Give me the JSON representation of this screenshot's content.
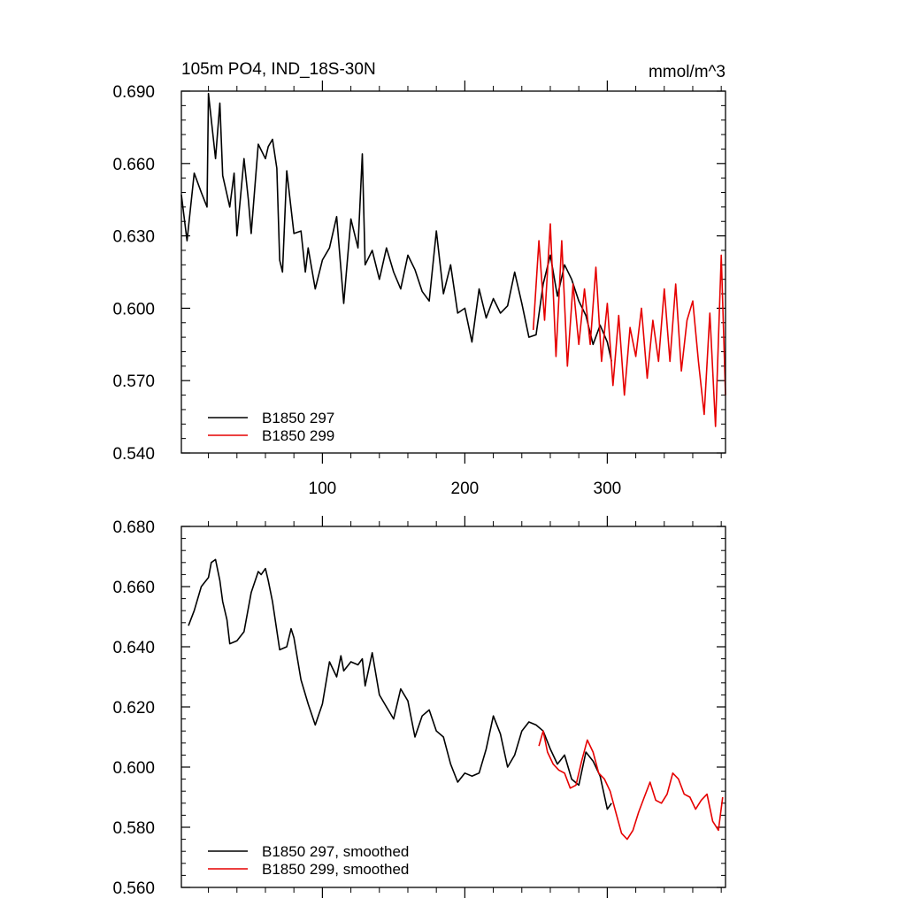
{
  "chart_data": [
    {
      "type": "line",
      "title": "105m PO4, IND_18S-30N",
      "units": "mmol/m^3",
      "xlim": [
        1,
        383
      ],
      "ylim": [
        0.54,
        0.69
      ],
      "x_ticks": [
        100,
        200,
        300
      ],
      "x_tick_labels": [
        "100",
        "200",
        "300"
      ],
      "y_ticks": [
        0.54,
        0.57,
        0.6,
        0.63,
        0.66,
        0.69
      ],
      "y_tick_labels": [
        "0.540",
        "0.570",
        "0.600",
        "0.630",
        "0.660",
        "0.690"
      ],
      "legend": [
        "B1850 297",
        "B1850 299"
      ],
      "legend_position": "bottom-left",
      "series": [
        {
          "name": "B1850 297",
          "color": "#000000",
          "x": [
            1,
            5,
            10,
            15,
            19,
            20,
            25,
            28,
            30,
            35,
            38,
            40,
            45,
            48,
            50,
            55,
            60,
            62,
            65,
            68,
            70,
            72,
            75,
            80,
            85,
            88,
            90,
            95,
            100,
            105,
            110,
            115,
            120,
            125,
            128,
            130,
            135,
            140,
            145,
            150,
            155,
            160,
            165,
            170,
            175,
            180,
            185,
            190,
            195,
            200,
            205,
            210,
            215,
            220,
            225,
            230,
            235,
            240,
            245,
            250,
            255,
            260,
            265,
            270,
            275,
            280,
            285,
            290,
            295,
            300,
            303
          ],
          "values": [
            0.647,
            0.628,
            0.656,
            0.648,
            0.642,
            0.689,
            0.662,
            0.685,
            0.655,
            0.642,
            0.656,
            0.63,
            0.662,
            0.645,
            0.631,
            0.668,
            0.662,
            0.667,
            0.67,
            0.658,
            0.62,
            0.615,
            0.657,
            0.631,
            0.632,
            0.615,
            0.625,
            0.608,
            0.62,
            0.625,
            0.638,
            0.602,
            0.637,
            0.625,
            0.664,
            0.618,
            0.624,
            0.612,
            0.625,
            0.615,
            0.608,
            0.622,
            0.616,
            0.607,
            0.603,
            0.632,
            0.606,
            0.618,
            0.598,
            0.6,
            0.586,
            0.608,
            0.596,
            0.604,
            0.598,
            0.601,
            0.615,
            0.602,
            0.588,
            0.589,
            0.61,
            0.622,
            0.605,
            0.618,
            0.612,
            0.603,
            0.597,
            0.585,
            0.593,
            0.586,
            0.578
          ]
        },
        {
          "name": "B1850 299",
          "color": "#e60000",
          "x": [
            248,
            252,
            256,
            260,
            264,
            268,
            272,
            276,
            280,
            284,
            288,
            292,
            296,
            300,
            304,
            308,
            312,
            316,
            320,
            324,
            328,
            332,
            336,
            340,
            344,
            348,
            352,
            356,
            360,
            364,
            368,
            372,
            376,
            380,
            383
          ],
          "values": [
            0.591,
            0.628,
            0.595,
            0.635,
            0.58,
            0.628,
            0.576,
            0.61,
            0.585,
            0.608,
            0.585,
            0.617,
            0.578,
            0.602,
            0.568,
            0.597,
            0.564,
            0.592,
            0.58,
            0.6,
            0.571,
            0.595,
            0.578,
            0.608,
            0.578,
            0.61,
            0.574,
            0.595,
            0.603,
            0.578,
            0.556,
            0.598,
            0.551,
            0.622,
            0.564
          ]
        }
      ]
    },
    {
      "type": "line",
      "title": "",
      "xlim": [
        1,
        383
      ],
      "ylim": [
        0.56,
        0.68
      ],
      "x_ticks": [
        100,
        200,
        300
      ],
      "x_tick_labels": [],
      "y_ticks": [
        0.56,
        0.58,
        0.6,
        0.62,
        0.64,
        0.66,
        0.68
      ],
      "y_tick_labels": [
        "0.560",
        "0.580",
        "0.600",
        "0.620",
        "0.640",
        "0.660",
        "0.680"
      ],
      "legend": [
        "B1850 297, smoothed",
        "B1850 299, smoothed"
      ],
      "legend_position": "bottom-left",
      "series": [
        {
          "name": "B1850 297, smoothed",
          "color": "#000000",
          "x": [
            6,
            10,
            15,
            20,
            22,
            25,
            28,
            30,
            33,
            35,
            40,
            45,
            50,
            55,
            57,
            60,
            62,
            65,
            70,
            75,
            78,
            80,
            85,
            90,
            95,
            100,
            105,
            110,
            113,
            115,
            120,
            125,
            128,
            130,
            135,
            140,
            145,
            150,
            155,
            160,
            165,
            170,
            175,
            180,
            185,
            190,
            195,
            200,
            205,
            210,
            215,
            220,
            225,
            230,
            235,
            240,
            245,
            250,
            255,
            260,
            265,
            270,
            275,
            280,
            285,
            290,
            295,
            300,
            303
          ],
          "values": [
            0.647,
            0.652,
            0.66,
            0.663,
            0.668,
            0.669,
            0.662,
            0.655,
            0.649,
            0.641,
            0.642,
            0.645,
            0.658,
            0.665,
            0.664,
            0.666,
            0.662,
            0.655,
            0.639,
            0.64,
            0.646,
            0.643,
            0.629,
            0.621,
            0.614,
            0.621,
            0.635,
            0.63,
            0.637,
            0.632,
            0.635,
            0.634,
            0.636,
            0.627,
            0.638,
            0.624,
            0.62,
            0.616,
            0.626,
            0.622,
            0.61,
            0.617,
            0.619,
            0.612,
            0.61,
            0.601,
            0.595,
            0.598,
            0.597,
            0.598,
            0.606,
            0.617,
            0.611,
            0.6,
            0.604,
            0.612,
            0.615,
            0.614,
            0.612,
            0.606,
            0.601,
            0.604,
            0.596,
            0.594,
            0.605,
            0.602,
            0.597,
            0.586,
            0.588
          ]
        },
        {
          "name": "B1850 299, smoothed",
          "color": "#e60000",
          "x": [
            252,
            255,
            258,
            262,
            266,
            270,
            274,
            278,
            282,
            286,
            290,
            294,
            298,
            302,
            306,
            310,
            314,
            318,
            322,
            326,
            330,
            334,
            338,
            342,
            346,
            350,
            354,
            358,
            362,
            366,
            370,
            374,
            378,
            381
          ],
          "values": [
            0.607,
            0.612,
            0.605,
            0.601,
            0.599,
            0.598,
            0.593,
            0.594,
            0.602,
            0.609,
            0.605,
            0.598,
            0.596,
            0.592,
            0.585,
            0.578,
            0.576,
            0.579,
            0.585,
            0.59,
            0.595,
            0.589,
            0.588,
            0.591,
            0.598,
            0.596,
            0.591,
            0.59,
            0.586,
            0.589,
            0.591,
            0.582,
            0.579,
            0.59
          ]
        }
      ]
    }
  ]
}
